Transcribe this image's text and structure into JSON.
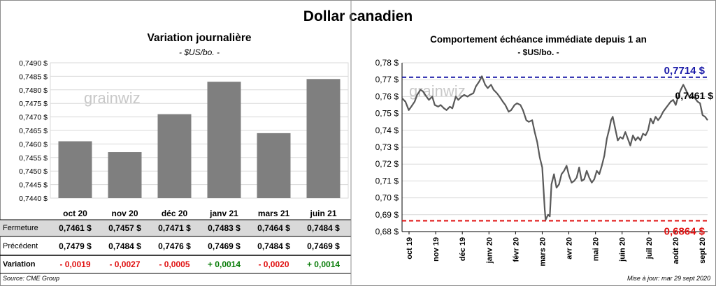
{
  "title": "Dollar canadien",
  "left": {
    "title": "Variation  journalière",
    "unit": "- $US/bo. -",
    "watermark": "grainwiz"
  },
  "right": {
    "title": "Comportement échéance immédiate depuis 1 an",
    "unit": "- $US/bo. -",
    "watermark": "grainwiz"
  },
  "table": {
    "fermeture_label": "Fermeture",
    "precedent_label": "Précédent",
    "variation_label": "Variation",
    "fermeture": [
      "0,7461  $",
      "0,7457  $",
      "0,7471  $",
      "0,7483  $",
      "0,7464  $",
      "0,7484  $"
    ],
    "precedent": [
      "0,7479  $",
      "0,7484  $",
      "0,7476  $",
      "0,7469  $",
      "0,7484  $",
      "0,7469  $"
    ],
    "variation": [
      "- 0,0019",
      "- 0,0027",
      "- 0,0005",
      "+ 0,0014",
      "- 0,0020",
      "+ 0,0014"
    ],
    "positive_color": "#0a7d0a",
    "negative_color": "#e01010",
    "shade_color": "#d9d9d9"
  },
  "footer": {
    "source": "Source: CME Group",
    "updated": "Mise à jour: mar 29 sept 2020"
  },
  "chart_data": [
    {
      "type": "bar",
      "categories": [
        "oct 20",
        "nov 20",
        "déc 20",
        "janv 21",
        "mars 21",
        "juin 21"
      ],
      "values": [
        0.7461,
        0.7457,
        0.7471,
        0.7483,
        0.7464,
        0.7484
      ],
      "ylim": [
        0.744,
        0.749
      ],
      "yticks": [
        "0,7440 $",
        "0,7445 $",
        "0,7450 $",
        "0,7455 $",
        "0,7460 $",
        "0,7465 $",
        "0,7470 $",
        "0,7475 $",
        "0,7480 $",
        "0,7485 $",
        "0,7490 $"
      ],
      "bar_color": "#7f7f7f",
      "grid": true
    },
    {
      "type": "line",
      "xlim": [
        "2019-10-01",
        "2020-09-29"
      ],
      "ylim": [
        0.68,
        0.78
      ],
      "yticks": [
        "0,68 $",
        "0,69 $",
        "0,70 $",
        "0,71 $",
        "0,72 $",
        "0,73 $",
        "0,74 $",
        "0,75 $",
        "0,76 $",
        "0,77 $",
        "0,78 $"
      ],
      "xticks": [
        "oct 19",
        "nov 19",
        "déc 19",
        "janv 20",
        "févr 20",
        "mars 20",
        "avr 20",
        "mai 20",
        "juin 20",
        "juil 20",
        "août 20",
        "sept 20"
      ],
      "line_color": "#595959",
      "grid": true,
      "high": {
        "value": 0.7714,
        "label": "0,7714  $",
        "color": "#1a1aa8"
      },
      "low": {
        "value": 0.6864,
        "label": "0,6864  $",
        "color": "#e01010"
      },
      "last": {
        "value": 0.7461,
        "label": "0,7461 $"
      },
      "series": [
        {
          "values": [
            [
              "2019-10-01",
              0.759
            ],
            [
              "2019-10-05",
              0.757
            ],
            [
              "2019-10-09",
              0.752
            ],
            [
              "2019-10-12",
              0.754
            ],
            [
              "2019-10-16",
              0.757
            ],
            [
              "2019-10-19",
              0.761
            ],
            [
              "2019-10-23",
              0.764
            ],
            [
              "2019-10-26",
              0.763
            ],
            [
              "2019-10-30",
              0.76
            ],
            [
              "2019-11-02",
              0.758
            ],
            [
              "2019-11-06",
              0.76
            ],
            [
              "2019-11-09",
              0.755
            ],
            [
              "2019-11-13",
              0.754
            ],
            [
              "2019-11-16",
              0.755
            ],
            [
              "2019-11-20",
              0.753
            ],
            [
              "2019-11-23",
              0.752
            ],
            [
              "2019-11-27",
              0.754
            ],
            [
              "2019-11-30",
              0.753
            ],
            [
              "2019-12-04",
              0.76
            ],
            [
              "2019-12-07",
              0.758
            ],
            [
              "2019-12-11",
              0.76
            ],
            [
              "2019-12-14",
              0.761
            ],
            [
              "2019-12-18",
              0.76
            ],
            [
              "2019-12-21",
              0.761
            ],
            [
              "2019-12-25",
              0.762
            ],
            [
              "2019-12-28",
              0.766
            ],
            [
              "2020-01-01",
              0.769
            ],
            [
              "2020-01-04",
              0.772
            ],
            [
              "2020-01-08",
              0.767
            ],
            [
              "2020-01-11",
              0.765
            ],
            [
              "2020-01-15",
              0.767
            ],
            [
              "2020-01-18",
              0.764
            ],
            [
              "2020-01-22",
              0.762
            ],
            [
              "2020-01-25",
              0.76
            ],
            [
              "2020-01-29",
              0.757
            ],
            [
              "2020-02-01",
              0.755
            ],
            [
              "2020-02-05",
              0.751
            ],
            [
              "2020-02-08",
              0.752
            ],
            [
              "2020-02-12",
              0.755
            ],
            [
              "2020-02-15",
              0.756
            ],
            [
              "2020-02-19",
              0.755
            ],
            [
              "2020-02-22",
              0.752
            ],
            [
              "2020-02-26",
              0.746
            ],
            [
              "2020-02-29",
              0.745
            ],
            [
              "2020-03-04",
              0.746
            ],
            [
              "2020-03-07",
              0.739
            ],
            [
              "2020-03-10",
              0.733
            ],
            [
              "2020-03-13",
              0.724
            ],
            [
              "2020-03-16",
              0.718
            ],
            [
              "2020-03-19",
              0.693
            ],
            [
              "2020-03-20",
              0.687
            ],
            [
              "2020-03-21",
              0.688
            ],
            [
              "2020-03-23",
              0.69
            ],
            [
              "2020-03-25",
              0.689
            ],
            [
              "2020-03-27",
              0.708
            ],
            [
              "2020-03-30",
              0.714
            ],
            [
              "2020-04-02",
              0.706
            ],
            [
              "2020-04-05",
              0.708
            ],
            [
              "2020-04-08",
              0.714
            ],
            [
              "2020-04-11",
              0.716
            ],
            [
              "2020-04-14",
              0.719
            ],
            [
              "2020-04-17",
              0.713
            ],
            [
              "2020-04-20",
              0.709
            ],
            [
              "2020-04-23",
              0.71
            ],
            [
              "2020-04-26",
              0.712
            ],
            [
              "2020-04-29",
              0.718
            ],
            [
              "2020-05-02",
              0.71
            ],
            [
              "2020-05-05",
              0.711
            ],
            [
              "2020-05-08",
              0.716
            ],
            [
              "2020-05-11",
              0.712
            ],
            [
              "2020-05-14",
              0.709
            ],
            [
              "2020-05-17",
              0.711
            ],
            [
              "2020-05-20",
              0.716
            ],
            [
              "2020-05-23",
              0.714
            ],
            [
              "2020-05-26",
              0.719
            ],
            [
              "2020-05-29",
              0.725
            ],
            [
              "2020-06-01",
              0.735
            ],
            [
              "2020-06-04",
              0.741
            ],
            [
              "2020-06-06",
              0.746
            ],
            [
              "2020-06-08",
              0.748
            ],
            [
              "2020-06-11",
              0.741
            ],
            [
              "2020-06-14",
              0.734
            ],
            [
              "2020-06-17",
              0.736
            ],
            [
              "2020-06-20",
              0.735
            ],
            [
              "2020-06-23",
              0.739
            ],
            [
              "2020-06-26",
              0.735
            ],
            [
              "2020-06-29",
              0.731
            ],
            [
              "2020-07-02",
              0.737
            ],
            [
              "2020-07-05",
              0.734
            ],
            [
              "2020-07-08",
              0.736
            ],
            [
              "2020-07-11",
              0.734
            ],
            [
              "2020-07-14",
              0.738
            ],
            [
              "2020-07-17",
              0.737
            ],
            [
              "2020-07-20",
              0.74
            ],
            [
              "2020-07-23",
              0.747
            ],
            [
              "2020-07-26",
              0.744
            ],
            [
              "2020-07-29",
              0.748
            ],
            [
              "2020-08-01",
              0.746
            ],
            [
              "2020-08-04",
              0.748
            ],
            [
              "2020-08-07",
              0.751
            ],
            [
              "2020-08-10",
              0.753
            ],
            [
              "2020-08-13",
              0.755
            ],
            [
              "2020-08-16",
              0.757
            ],
            [
              "2020-08-19",
              0.758
            ],
            [
              "2020-08-22",
              0.755
            ],
            [
              "2020-08-25",
              0.76
            ],
            [
              "2020-08-28",
              0.764
            ],
            [
              "2020-08-31",
              0.767
            ],
            [
              "2020-09-02",
              0.765
            ],
            [
              "2020-09-05",
              0.762
            ],
            [
              "2020-09-08",
              0.759
            ],
            [
              "2020-09-11",
              0.76
            ],
            [
              "2020-09-14",
              0.759
            ],
            [
              "2020-09-17",
              0.757
            ],
            [
              "2020-09-20",
              0.756
            ],
            [
              "2020-09-23",
              0.749
            ],
            [
              "2020-09-26",
              0.748
            ],
            [
              "2020-09-29",
              0.746
            ]
          ]
        }
      ]
    }
  ]
}
